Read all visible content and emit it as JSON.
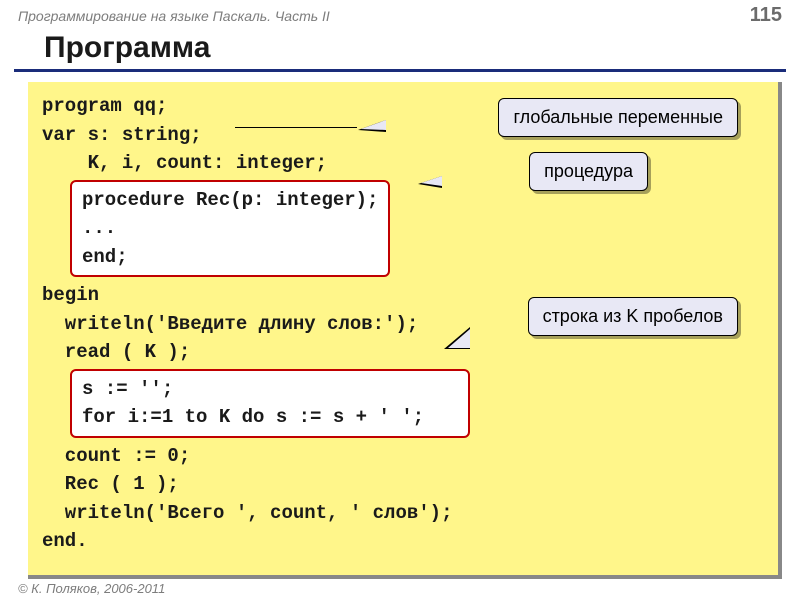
{
  "header": {
    "course_title": "Программирование на языке Паскаль. Часть II",
    "page_number": "115"
  },
  "slide_title": "Программа",
  "code": {
    "line1": "program qq;",
    "line2": "var s: string;",
    "line3": "    K, i, count: integer;",
    "box1_line1": "procedure Rec(p: integer);",
    "box1_line2": "...",
    "box1_line3": "end;",
    "line4": "begin",
    "line5": "  writeln('Введите длину слов:');",
    "line6": "  read ( K );",
    "box2_line1": "s := '';",
    "box2_line2": "for i:=1 to K do s := s + ' ';",
    "line7": "  count := 0;",
    "line8": "  Rec ( 1 );",
    "line9": "  writeln('Всего ', count, ' слов');",
    "line10": "end."
  },
  "callouts": {
    "c1": "глобальные переменные",
    "c2": "процедура",
    "c3": "строка из K пробелов"
  },
  "footer": "© К. Поляков, 2006-2011",
  "colors": {
    "code_bg": "#fff68a",
    "box_border": "#c00000",
    "callout_bg": "#e8e8f5",
    "title_underline": "#1a2c7a",
    "header_text": "#7d7d7d"
  }
}
